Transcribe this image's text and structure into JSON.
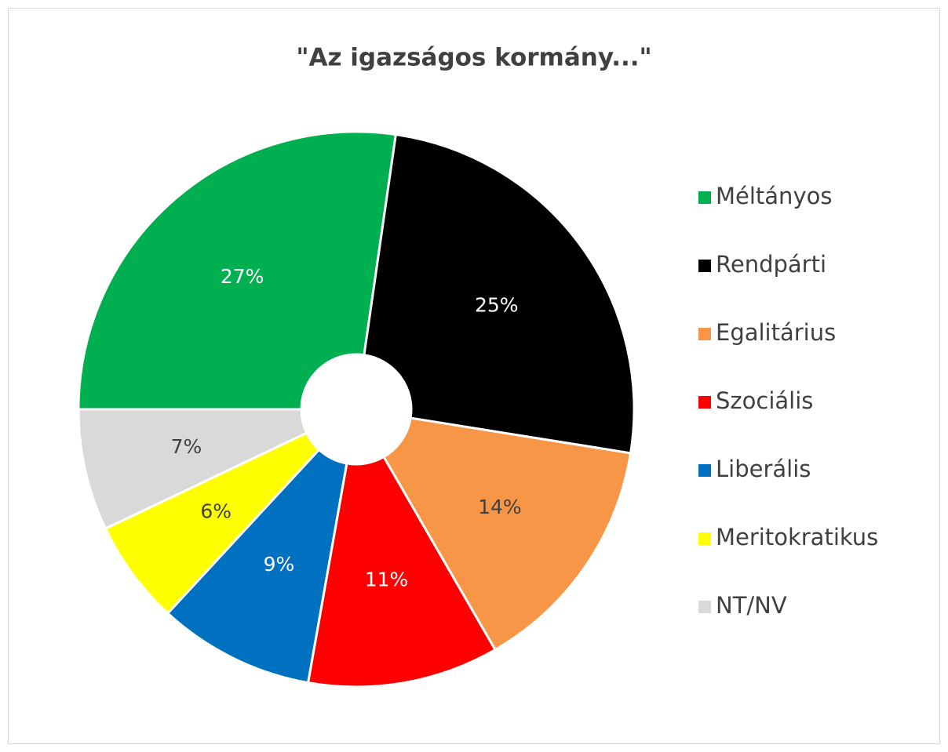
{
  "chart_data": {
    "type": "pie",
    "title": "\"Az igazságos kormány...\"",
    "categories": [
      "Méltányos",
      "Rendpárti",
      "Egalitárius",
      "Szociális",
      "Liberális",
      "Meritokratikus",
      "NT/NV"
    ],
    "values": [
      27,
      25,
      14,
      11,
      9,
      6,
      7
    ],
    "value_labels": [
      "27%",
      "25%",
      "14%",
      "11%",
      "9%",
      "6%",
      "7%"
    ],
    "colors": [
      "#00b050",
      "#000000",
      "#f79646",
      "#ff0000",
      "#0070c0",
      "#ffff00",
      "#d9d9d9"
    ],
    "first_slice_angle": 270,
    "donut": true,
    "legend": "right"
  }
}
